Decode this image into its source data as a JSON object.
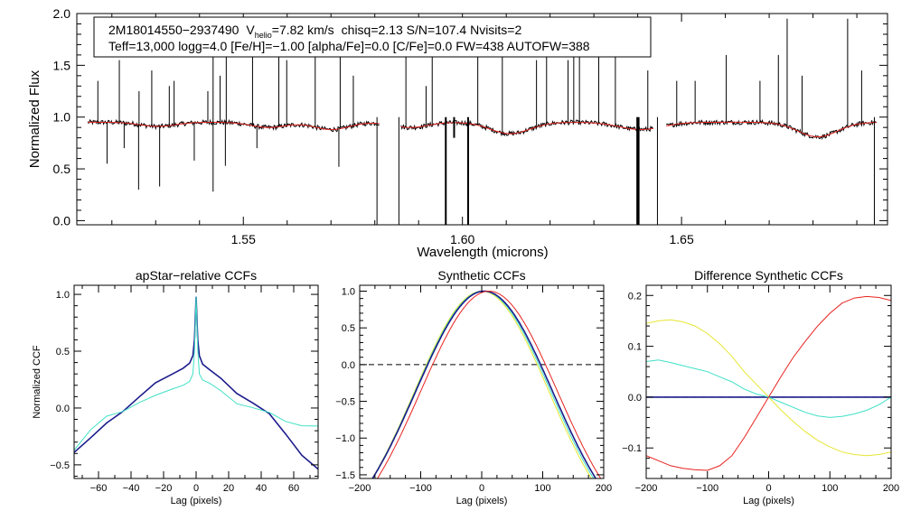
{
  "chart_data": [
    {
      "type": "line",
      "title": "",
      "xlabel": "Wavelength (microns)",
      "ylabel": "Normalized Flux",
      "xlim": [
        1.512,
        1.697
      ],
      "ylim": [
        -0.04,
        2.0
      ],
      "xticks": [
        "1.55",
        "1.60",
        "1.65"
      ],
      "yticks": [
        "0.0",
        "0.5",
        "1.0",
        "1.5",
        "2.0"
      ],
      "annotation": {
        "id_text": "2M18014550−2937490",
        "v_prefix": "V",
        "v_sub": "helio",
        "v_value": "=7.82 km/s",
        "stats": "chisq=2.13  S/N=107.4  Nvisits=2",
        "line2": "Teff=13,000 logg=4.0 [Fe/H]=−1.00 [alpha/Fe]=0.0 [C/Fe]=0.0 FW=438 AUTOFW=388"
      },
      "chips": [
        [
          1.5145,
          1.581
        ],
        [
          1.586,
          1.6435
        ],
        [
          1.6465,
          1.6945
        ]
      ],
      "baseline": 0.95,
      "noise": 0.022,
      "broad_absorption": [
        {
          "center": 1.5305,
          "depth": 0.04,
          "width": 0.004
        },
        {
          "center": 1.5558,
          "depth": 0.05,
          "width": 0.004
        },
        {
          "center": 1.5701,
          "depth": 0.07,
          "width": 0.004
        },
        {
          "center": 1.5881,
          "depth": 0.05,
          "width": 0.004
        },
        {
          "center": 1.6109,
          "depth": 0.11,
          "width": 0.0045
        },
        {
          "center": 1.6407,
          "depth": 0.07,
          "width": 0.005
        },
        {
          "center": 1.6811,
          "depth": 0.14,
          "width": 0.0045
        }
      ],
      "emission_spikes": [
        {
          "wl": 1.5168,
          "peak": 1.35
        },
        {
          "wl": 1.5217,
          "peak": 1.55
        },
        {
          "wl": 1.5262,
          "peak": 1.25
        },
        {
          "wl": 1.5291,
          "peak": 1.45
        },
        {
          "wl": 1.5331,
          "peak": 1.3
        },
        {
          "wl": 1.5342,
          "peak": 1.35
        },
        {
          "wl": 1.5419,
          "peak": 1.25
        },
        {
          "wl": 1.5431,
          "peak": 1.8
        },
        {
          "wl": 1.5447,
          "peak": 1.4
        },
        {
          "wl": 1.5461,
          "peak": 1.7
        },
        {
          "wl": 1.5521,
          "peak": 1.85
        },
        {
          "wl": 1.5581,
          "peak": 1.95
        },
        {
          "wl": 1.5599,
          "peak": 1.55
        },
        {
          "wl": 1.5664,
          "peak": 1.85
        },
        {
          "wl": 1.5721,
          "peak": 1.75
        },
        {
          "wl": 1.5751,
          "peak": 1.4
        },
        {
          "wl": 1.5871,
          "peak": 1.7
        },
        {
          "wl": 1.5917,
          "peak": 1.3
        },
        {
          "wl": 1.5931,
          "peak": 1.65
        },
        {
          "wl": 1.6035,
          "peak": 1.95
        },
        {
          "wl": 1.6091,
          "peak": 1.95
        },
        {
          "wl": 1.6169,
          "peak": 1.55
        },
        {
          "wl": 1.6192,
          "peak": 1.75
        },
        {
          "wl": 1.6241,
          "peak": 1.55
        },
        {
          "wl": 1.6254,
          "peak": 1.95
        },
        {
          "wl": 1.6267,
          "peak": 1.8
        },
        {
          "wl": 1.6311,
          "peak": 1.65
        },
        {
          "wl": 1.6349,
          "peak": 1.7
        },
        {
          "wl": 1.6423,
          "peak": 1.45
        },
        {
          "wl": 1.6489,
          "peak": 1.35
        },
        {
          "wl": 1.6531,
          "peak": 1.35
        },
        {
          "wl": 1.6602,
          "peak": 1.6
        },
        {
          "wl": 1.6679,
          "peak": 1.35
        },
        {
          "wl": 1.6721,
          "peak": 1.6
        },
        {
          "wl": 1.6741,
          "peak": 1.95
        },
        {
          "wl": 1.6775,
          "peak": 1.4
        },
        {
          "wl": 1.6879,
          "peak": 1.95
        },
        {
          "wl": 1.6911,
          "peak": 1.45
        }
      ],
      "absorption_spikes": [
        {
          "wl": 1.5189,
          "min": 0.55
        },
        {
          "wl": 1.5228,
          "min": 0.7
        },
        {
          "wl": 1.5261,
          "min": 0.3
        },
        {
          "wl": 1.5309,
          "min": 0.33
        },
        {
          "wl": 1.5388,
          "min": 0.58
        },
        {
          "wl": 1.5431,
          "min": 0.28
        },
        {
          "wl": 1.5459,
          "min": 0.53
        },
        {
          "wl": 1.5531,
          "min": 0.7
        },
        {
          "wl": 1.5718,
          "min": 0.52
        }
      ],
      "dropouts": [
        {
          "wl": 1.5962,
          "min": -0.04
        },
        {
          "wl": 1.5981,
          "min": 0.8
        },
        {
          "wl": 1.6013,
          "min": -0.04
        },
        {
          "wl": 1.6399,
          "min": -0.04
        },
        {
          "wl": 1.6402,
          "min": -0.04
        }
      ],
      "chip_edge_drops": [
        1.5805,
        1.5855,
        1.6445,
        1.694
      ],
      "series": [
        {
          "name": "observed",
          "color": "#000000"
        },
        {
          "name": "model",
          "color": "#e8231f"
        }
      ]
    },
    {
      "type": "line",
      "title": "apStar−relative CCFs",
      "xlabel": "Lag (pixels)",
      "ylabel": "Normalized CCF",
      "xlim": [
        -75,
        75
      ],
      "ylim": [
        -0.62,
        1.08
      ],
      "xticks": [
        -60,
        -40,
        -20,
        0,
        20,
        40,
        60
      ],
      "yticks": [
        -0.5,
        0.0,
        0.5,
        1.0
      ],
      "series": [
        {
          "name": "navy",
          "color": "#1c1c8c",
          "width": 1.6,
          "points": [
            [
              -75,
              -0.38
            ],
            [
              -65,
              -0.27
            ],
            [
              -55,
              -0.14
            ],
            [
              -45,
              -0.02
            ],
            [
              -35,
              0.1
            ],
            [
              -25,
              0.21
            ],
            [
              -15,
              0.3
            ],
            [
              -8,
              0.36
            ],
            [
              -4,
              0.4
            ],
            [
              -2,
              0.46
            ],
            [
              -1,
              0.6
            ],
            [
              0,
              0.98
            ],
            [
              1,
              0.6
            ],
            [
              2,
              0.46
            ],
            [
              4,
              0.38
            ],
            [
              8,
              0.33
            ],
            [
              15,
              0.26
            ],
            [
              25,
              0.14
            ],
            [
              35,
              0.04
            ],
            [
              45,
              -0.06
            ],
            [
              55,
              -0.22
            ],
            [
              65,
              -0.41
            ],
            [
              75,
              -0.55
            ]
          ]
        },
        {
          "name": "turquoise",
          "color": "#3fe0c5",
          "width": 1,
          "points": [
            [
              -75,
              -0.36
            ],
            [
              -65,
              -0.2
            ],
            [
              -55,
              -0.08
            ],
            [
              -45,
              -0.02
            ],
            [
              -35,
              0.05
            ],
            [
              -25,
              0.1
            ],
            [
              -15,
              0.17
            ],
            [
              -8,
              0.21
            ],
            [
              -4,
              0.24
            ],
            [
              -2,
              0.3
            ],
            [
              -1,
              0.5
            ],
            [
              0,
              0.98
            ],
            [
              1,
              0.52
            ],
            [
              2,
              0.3
            ],
            [
              4,
              0.24
            ],
            [
              8,
              0.21
            ],
            [
              15,
              0.15
            ],
            [
              25,
              0.05
            ],
            [
              35,
              0.0
            ],
            [
              45,
              -0.05
            ],
            [
              55,
              -0.11
            ],
            [
              65,
              -0.15
            ],
            [
              75,
              -0.17
            ]
          ]
        }
      ]
    },
    {
      "type": "line",
      "title": "Synthetic CCFs",
      "xlabel": "Lag (pixels)",
      "ylabel": "",
      "xlim": [
        -200,
        200
      ],
      "ylim": [
        -1.55,
        1.08
      ],
      "xticks": [
        -200,
        -100,
        0,
        100,
        200
      ],
      "yticks": [
        -1.5,
        -1.0,
        -0.5,
        0.0,
        0.5,
        1.0
      ],
      "hline": 0.0,
      "series": [
        {
          "name": "yellow",
          "color": "#e6e632",
          "width": 1,
          "center": 0,
          "width_param": 110,
          "offset": -2.46,
          "amp": 3.46
        },
        {
          "name": "turquoise",
          "color": "#3fe0c5",
          "width": 1,
          "center": 2,
          "width_param": 111,
          "offset": -2.46,
          "amp": 3.46
        },
        {
          "name": "navy",
          "color": "#1c1c8c",
          "width": 1.6,
          "center": 4,
          "width_param": 112,
          "offset": -2.46,
          "amp": 3.46
        },
        {
          "name": "red",
          "color": "#e8231f",
          "width": 1,
          "center": 12,
          "width_param": 112,
          "offset": -2.46,
          "amp": 3.46
        }
      ]
    },
    {
      "type": "line",
      "title": "Difference Synthetic CCFs",
      "xlabel": "Lag (pixels)",
      "ylabel": "",
      "xlim": [
        -200,
        200
      ],
      "ylim": [
        -0.16,
        0.22
      ],
      "xticks": [
        -200,
        -100,
        0,
        100,
        200
      ],
      "yticks": [
        -0.1,
        0.0,
        0.1,
        0.2
      ],
      "hline": 0.0,
      "series": [
        {
          "name": "navy",
          "color": "#1c1c8c",
          "width": 1.6,
          "points": [
            [
              -200,
              0.0
            ],
            [
              200,
              0.0
            ]
          ]
        },
        {
          "name": "yellow",
          "color": "#e6e632",
          "width": 1,
          "points": [
            [
              -200,
              0.145
            ],
            [
              -180,
              0.15
            ],
            [
              -160,
              0.152
            ],
            [
              -140,
              0.148
            ],
            [
              -120,
              0.14
            ],
            [
              -100,
              0.125
            ],
            [
              -80,
              0.105
            ],
            [
              -60,
              0.08
            ],
            [
              -40,
              0.05
            ],
            [
              -20,
              0.025
            ],
            [
              0,
              0.0
            ],
            [
              20,
              -0.025
            ],
            [
              40,
              -0.048
            ],
            [
              60,
              -0.068
            ],
            [
              80,
              -0.085
            ],
            [
              100,
              -0.098
            ],
            [
              120,
              -0.108
            ],
            [
              140,
              -0.113
            ],
            [
              160,
              -0.115
            ],
            [
              180,
              -0.113
            ],
            [
              200,
              -0.108
            ]
          ]
        },
        {
          "name": "turquoise",
          "color": "#3fe0c5",
          "width": 1,
          "points": [
            [
              -200,
              0.07
            ],
            [
              -180,
              0.073
            ],
            [
              -160,
              0.068
            ],
            [
              -140,
              0.062
            ],
            [
              -120,
              0.056
            ],
            [
              -100,
              0.05
            ],
            [
              -80,
              0.04
            ],
            [
              -60,
              0.03
            ],
            [
              -40,
              0.016
            ],
            [
              -20,
              0.006
            ],
            [
              0,
              0.0
            ],
            [
              20,
              -0.01
            ],
            [
              40,
              -0.02
            ],
            [
              60,
              -0.03
            ],
            [
              80,
              -0.037
            ],
            [
              100,
              -0.04
            ],
            [
              120,
              -0.038
            ],
            [
              140,
              -0.033
            ],
            [
              160,
              -0.026
            ],
            [
              180,
              -0.015
            ],
            [
              200,
              0.0
            ]
          ]
        },
        {
          "name": "red",
          "color": "#e8231f",
          "width": 1,
          "points": [
            [
              -200,
              -0.115
            ],
            [
              -180,
              -0.125
            ],
            [
              -160,
              -0.135
            ],
            [
              -140,
              -0.14
            ],
            [
              -120,
              -0.143
            ],
            [
              -100,
              -0.144
            ],
            [
              -80,
              -0.135
            ],
            [
              -60,
              -0.115
            ],
            [
              -40,
              -0.08
            ],
            [
              -20,
              -0.04
            ],
            [
              0,
              0.0
            ],
            [
              20,
              0.04
            ],
            [
              40,
              0.078
            ],
            [
              60,
              0.11
            ],
            [
              80,
              0.14
            ],
            [
              100,
              0.165
            ],
            [
              120,
              0.185
            ],
            [
              140,
              0.195
            ],
            [
              160,
              0.198
            ],
            [
              180,
              0.196
            ],
            [
              200,
              0.19
            ]
          ]
        }
      ]
    }
  ]
}
